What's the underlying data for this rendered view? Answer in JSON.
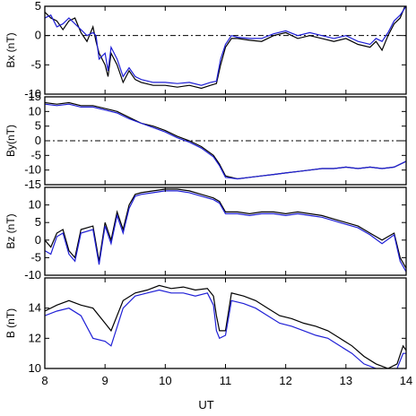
{
  "chart_data": {
    "type": "line",
    "xlabel": "UT",
    "xlim": [
      8,
      14
    ],
    "xticks": [
      8,
      9,
      10,
      11,
      12,
      13,
      14
    ],
    "xtick_labels": [
      "8",
      "9",
      "10",
      "11",
      "12",
      "13",
      "14"
    ],
    "series_colors": {
      "black": "#000000",
      "blue": "#1f1fd6"
    },
    "panels": [
      {
        "id": "bx",
        "ylabel": "Bx (nT)",
        "ylim": [
          -10,
          5
        ],
        "yticks": [
          -10,
          -5,
          0,
          5
        ],
        "ytick_labels": [
          "-10",
          "-5",
          "0",
          "5"
        ],
        "zero_line": true,
        "series": [
          {
            "color": "black",
            "x": [
              8.0,
              8.1,
              8.2,
              8.3,
              8.4,
              8.5,
              8.6,
              8.7,
              8.8,
              8.85,
              8.9,
              9.0,
              9.05,
              9.1,
              9.2,
              9.3,
              9.4,
              9.5,
              9.6,
              9.8,
              10.0,
              10.2,
              10.4,
              10.6,
              10.75,
              10.85,
              10.92,
              11.0,
              11.1,
              11.2,
              11.4,
              11.6,
              11.8,
              12.0,
              12.2,
              12.4,
              12.6,
              12.8,
              13.0,
              13.2,
              13.4,
              13.5,
              13.6,
              13.7,
              13.8,
              13.9,
              14.0
            ],
            "y": [
              4,
              3,
              2.5,
              1,
              2.5,
              3,
              0.5,
              -1,
              1.5,
              -1,
              -3,
              -5,
              -7,
              -3,
              -5,
              -8,
              -6,
              -7.5,
              -8,
              -8.5,
              -8.5,
              -8.8,
              -8.5,
              -9,
              -8.5,
              -8.2,
              -5,
              -2,
              -0.5,
              -0.5,
              -0.8,
              -1,
              0,
              0.5,
              -0.5,
              0,
              -0.5,
              -1,
              -0.5,
              -1.5,
              -2,
              -1,
              -2.5,
              0,
              2,
              3,
              5.5
            ]
          },
          {
            "color": "blue",
            "x": [
              8.0,
              8.1,
              8.2,
              8.3,
              8.4,
              8.5,
              8.6,
              8.7,
              8.8,
              8.85,
              8.9,
              9.0,
              9.05,
              9.1,
              9.2,
              9.3,
              9.4,
              9.5,
              9.6,
              9.8,
              10.0,
              10.2,
              10.4,
              10.6,
              10.75,
              10.85,
              10.92,
              11.0,
              11.1,
              11.2,
              11.4,
              11.6,
              11.8,
              12.0,
              12.2,
              12.4,
              12.6,
              12.8,
              13.0,
              13.2,
              13.4,
              13.5,
              13.6,
              13.7,
              13.8,
              13.9,
              14.0
            ],
            "y": [
              3,
              3.5,
              1.5,
              2,
              3,
              2,
              1,
              0,
              0.5,
              0,
              -4,
              -3,
              -6,
              -2,
              -4,
              -7,
              -5.5,
              -7,
              -7.5,
              -8,
              -8,
              -8.2,
              -8,
              -8.5,
              -8,
              -7.8,
              -4,
              -1.5,
              0,
              -0.3,
              -0.5,
              -0.5,
              0.3,
              0.8,
              0,
              0.5,
              0,
              -0.5,
              0,
              -1,
              -1.5,
              -0.5,
              -1,
              0.5,
              2.5,
              3.5,
              5
            ]
          }
        ]
      },
      {
        "id": "by",
        "ylabel": "By(nT)",
        "ylim": [
          -15,
          15
        ],
        "yticks": [
          -15,
          -10,
          -5,
          0,
          5,
          10,
          15
        ],
        "ytick_labels": [
          "-15",
          "-10",
          "-5",
          "0",
          "5",
          "10",
          "15"
        ],
        "zero_line": true,
        "series": [
          {
            "color": "black",
            "x": [
              8.0,
              8.2,
              8.4,
              8.6,
              8.8,
              9.0,
              9.2,
              9.4,
              9.6,
              9.8,
              10.0,
              10.2,
              10.4,
              10.6,
              10.8,
              10.9,
              11.0,
              11.2,
              11.4,
              11.6,
              11.8,
              12.0,
              12.2,
              12.4,
              12.6,
              12.8,
              13.0,
              13.2,
              13.4,
              13.6,
              13.8,
              14.0
            ],
            "y": [
              13,
              12.5,
              13,
              12,
              12,
              11,
              10,
              8,
              6,
              5,
              3.5,
              1.5,
              0,
              -2,
              -5,
              -8,
              -12,
              -13,
              -12.5,
              -12,
              -11.5,
              -11,
              -10.5,
              -10,
              -9.5,
              -9.5,
              -9,
              -9.5,
              -9,
              -9.5,
              -9,
              -7
            ]
          },
          {
            "color": "blue",
            "x": [
              8.0,
              8.2,
              8.4,
              8.6,
              8.8,
              9.0,
              9.2,
              9.4,
              9.6,
              9.8,
              10.0,
              10.2,
              10.4,
              10.6,
              10.8,
              10.9,
              11.0,
              11.2,
              11.4,
              11.6,
              11.8,
              12.0,
              12.2,
              12.4,
              12.6,
              12.8,
              13.0,
              13.2,
              13.4,
              13.6,
              13.8,
              14.0
            ],
            "y": [
              12.5,
              12,
              12.5,
              11.5,
              11.5,
              10.5,
              9.5,
              7.5,
              6,
              4.5,
              3,
              1,
              -0.5,
              -2.5,
              -5.5,
              -8.5,
              -12.5,
              -13,
              -12.5,
              -12,
              -11.5,
              -11,
              -10.5,
              -10,
              -9.5,
              -9.5,
              -9,
              -9.5,
              -9,
              -9.5,
              -9,
              -7
            ]
          }
        ]
      },
      {
        "id": "bz",
        "ylabel": "Bz (nT)",
        "ylim": [
          -10,
          15
        ],
        "yticks": [
          -10,
          -5,
          0,
          5,
          10
        ],
        "ytick_labels": [
          "-10",
          "-5",
          "0",
          "5",
          "10"
        ],
        "zero_line": false,
        "series": [
          {
            "color": "black",
            "x": [
              8.0,
              8.1,
              8.2,
              8.3,
              8.4,
              8.5,
              8.6,
              8.8,
              8.9,
              9.0,
              9.1,
              9.2,
              9.3,
              9.4,
              9.5,
              9.6,
              9.8,
              10.0,
              10.2,
              10.4,
              10.6,
              10.8,
              10.9,
              11.0,
              11.2,
              11.4,
              11.6,
              11.8,
              12.0,
              12.2,
              12.4,
              12.6,
              12.8,
              13.0,
              13.2,
              13.4,
              13.6,
              13.8,
              13.9,
              14.0
            ],
            "y": [
              0,
              -2,
              2,
              3,
              -3,
              -5,
              3,
              4,
              -6,
              5,
              0,
              8,
              3,
              10,
              13,
              13.5,
              14,
              14.5,
              14.5,
              14,
              13,
              12,
              11,
              8,
              8,
              7.5,
              8,
              8,
              7.5,
              8,
              7.5,
              7,
              6,
              5,
              4,
              2,
              0,
              2,
              -5,
              -8
            ]
          },
          {
            "color": "blue",
            "x": [
              8.0,
              8.1,
              8.2,
              8.3,
              8.4,
              8.5,
              8.6,
              8.8,
              8.9,
              9.0,
              9.1,
              9.2,
              9.3,
              9.4,
              9.5,
              9.6,
              9.8,
              10.0,
              10.2,
              10.4,
              10.6,
              10.8,
              10.9,
              11.0,
              11.2,
              11.4,
              11.6,
              11.8,
              12.0,
              12.2,
              12.4,
              12.6,
              12.8,
              13.0,
              13.2,
              13.4,
              13.6,
              13.8,
              13.9,
              14.0
            ],
            "y": [
              -3,
              -4,
              1,
              2,
              -4,
              -6,
              2,
              3,
              -7,
              4,
              -1,
              7,
              2,
              9,
              12.5,
              13,
              13.5,
              14,
              14,
              13.5,
              12.5,
              11.5,
              10.5,
              7.5,
              7.5,
              7,
              7.5,
              7.5,
              7,
              7.5,
              7,
              6.5,
              5.5,
              4.5,
              3.5,
              1.5,
              -1,
              1.5,
              -6,
              -9
            ]
          }
        ]
      },
      {
        "id": "b",
        "ylabel": "B (nT)",
        "ylim": [
          10,
          16
        ],
        "yticks": [
          10,
          12,
          14
        ],
        "ytick_labels": [
          "10",
          "12",
          "14"
        ],
        "zero_line": false,
        "series": [
          {
            "color": "black",
            "x": [
              8.0,
              8.2,
              8.4,
              8.6,
              8.8,
              9.0,
              9.1,
              9.3,
              9.5,
              9.7,
              9.9,
              10.1,
              10.3,
              10.5,
              10.7,
              10.8,
              10.85,
              10.9,
              11.0,
              11.1,
              11.3,
              11.5,
              11.7,
              11.9,
              12.1,
              12.3,
              12.5,
              12.7,
              12.9,
              13.1,
              13.3,
              13.5,
              13.7,
              13.85,
              13.95,
              14.0
            ],
            "y": [
              13.8,
              14.2,
              14.5,
              14.2,
              14,
              13,
              12.5,
              14.5,
              15,
              15.2,
              15.5,
              15.3,
              15.4,
              15.2,
              15.3,
              14.8,
              13.5,
              12.5,
              12.5,
              15,
              14.8,
              14.5,
              14,
              13.5,
              13.3,
              13,
              12.8,
              12.5,
              12,
              11.5,
              10.8,
              10.3,
              10,
              10.3,
              11.5,
              11.2
            ]
          },
          {
            "color": "blue",
            "x": [
              8.0,
              8.2,
              8.4,
              8.6,
              8.8,
              9.0,
              9.1,
              9.3,
              9.5,
              9.7,
              9.9,
              10.1,
              10.3,
              10.5,
              10.7,
              10.8,
              10.85,
              10.9,
              11.0,
              11.1,
              11.3,
              11.5,
              11.7,
              11.9,
              12.1,
              12.3,
              12.5,
              12.7,
              12.9,
              13.1,
              13.3,
              13.5,
              13.7,
              13.85,
              13.95,
              14.0
            ],
            "y": [
              13.5,
              13.8,
              14,
              13.5,
              12,
              11.8,
              11.5,
              14,
              14.8,
              15,
              15.2,
              15,
              15,
              14.8,
              15,
              14.2,
              12.5,
              12,
              12.2,
              14.5,
              14.3,
              14,
              13.5,
              13,
              12.8,
              12.5,
              12.2,
              12,
              11.5,
              11,
              10.3,
              10,
              9.8,
              10,
              11,
              11
            ]
          }
        ]
      }
    ]
  }
}
